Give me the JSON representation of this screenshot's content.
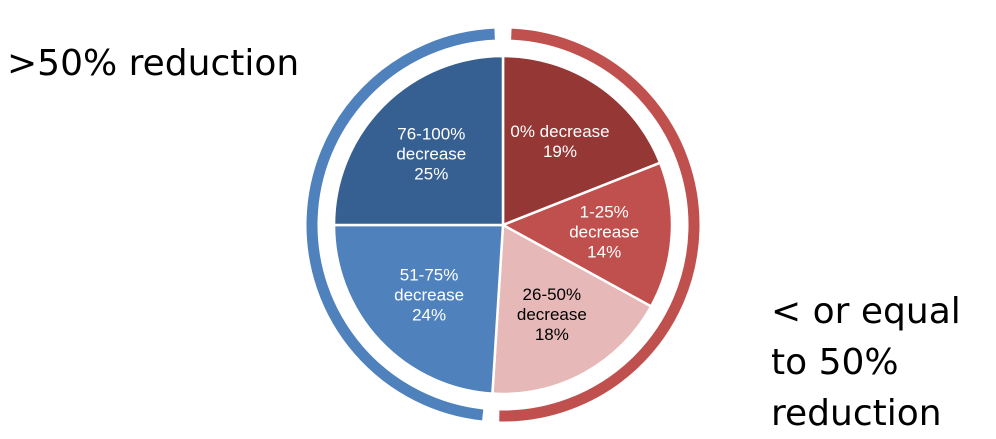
{
  "chart_data": {
    "type": "pie",
    "title": "",
    "slices": [
      {
        "label": "0% decrease",
        "lines": [
          "0% decrease",
          "19%"
        ],
        "value": 19,
        "color": "#953735",
        "text_color": "#ffffff"
      },
      {
        "label": "1-25% decrease",
        "lines": [
          "1-25%",
          "decrease",
          "14%"
        ],
        "value": 14,
        "color": "#c0504d",
        "text_color": "#ffffff"
      },
      {
        "label": "26-50% decrease",
        "lines": [
          "26-50%",
          "decrease",
          "18%"
        ],
        "value": 18,
        "color": "#e6b9b8",
        "text_color": "#000000"
      },
      {
        "label": "51-75% decrease",
        "lines": [
          "51-75%",
          "decrease",
          "24%"
        ],
        "value": 24,
        "color": "#4f81bd",
        "text_color": "#ffffff"
      },
      {
        "label": "76-100% decrease",
        "lines": [
          "76-100%",
          "decrease",
          "25%"
        ],
        "value": 25,
        "color": "#376092",
        "text_color": "#ffffff"
      }
    ],
    "groups": [
      {
        "label": ">50% reduction",
        "color": "#4f81bd",
        "slices": [
          "51-75% decrease",
          "76-100% decrease"
        ]
      },
      {
        "label": "< or equal to 50% reduction",
        "lines": [
          "< or equal",
          "to 50%",
          "reduction"
        ],
        "color": "#c0504d",
        "slices": [
          "0% decrease",
          "1-25% decrease",
          "26-50% decrease"
        ]
      }
    ]
  }
}
